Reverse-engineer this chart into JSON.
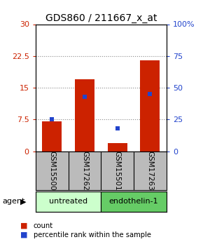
{
  "title": "GDS860 / 211667_x_at",
  "samples": [
    "GSM15500",
    "GSM17262",
    "GSM15501",
    "GSM17263"
  ],
  "counts": [
    7.0,
    17.0,
    2.0,
    21.5
  ],
  "percentiles": [
    25,
    43,
    18,
    45
  ],
  "ylim_left": [
    0,
    30
  ],
  "ylim_right": [
    0,
    100
  ],
  "yticks_left": [
    0,
    7.5,
    15,
    22.5,
    30
  ],
  "yticks_right": [
    0,
    25,
    50,
    75,
    100
  ],
  "ytick_labels_left": [
    "0",
    "7.5",
    "15",
    "22.5",
    "30"
  ],
  "ytick_labels_right": [
    "0",
    "25",
    "50",
    "75",
    "100%"
  ],
  "bar_color": "#cc2200",
  "percentile_color": "#2244cc",
  "bar_width": 0.6,
  "groups": [
    {
      "label": "untreated",
      "indices": [
        0,
        1
      ],
      "color": "#ccffcc"
    },
    {
      "label": "endothelin-1",
      "indices": [
        2,
        3
      ],
      "color": "#66cc66"
    }
  ],
  "agent_label": "agent",
  "legend_items": [
    {
      "color": "#cc2200",
      "label": "count"
    },
    {
      "color": "#2244cc",
      "label": "percentile rank within the sample"
    }
  ],
  "grid_color": "#888888",
  "axis_label_color_left": "#cc2200",
  "axis_label_color_right": "#2244cc",
  "bg_color": "#ffffff",
  "plot_bg_color": "#ffffff",
  "x_label_area_color": "#bbbbbb",
  "title_fontsize": 10,
  "tick_fontsize": 8,
  "label_fontsize": 7.5
}
